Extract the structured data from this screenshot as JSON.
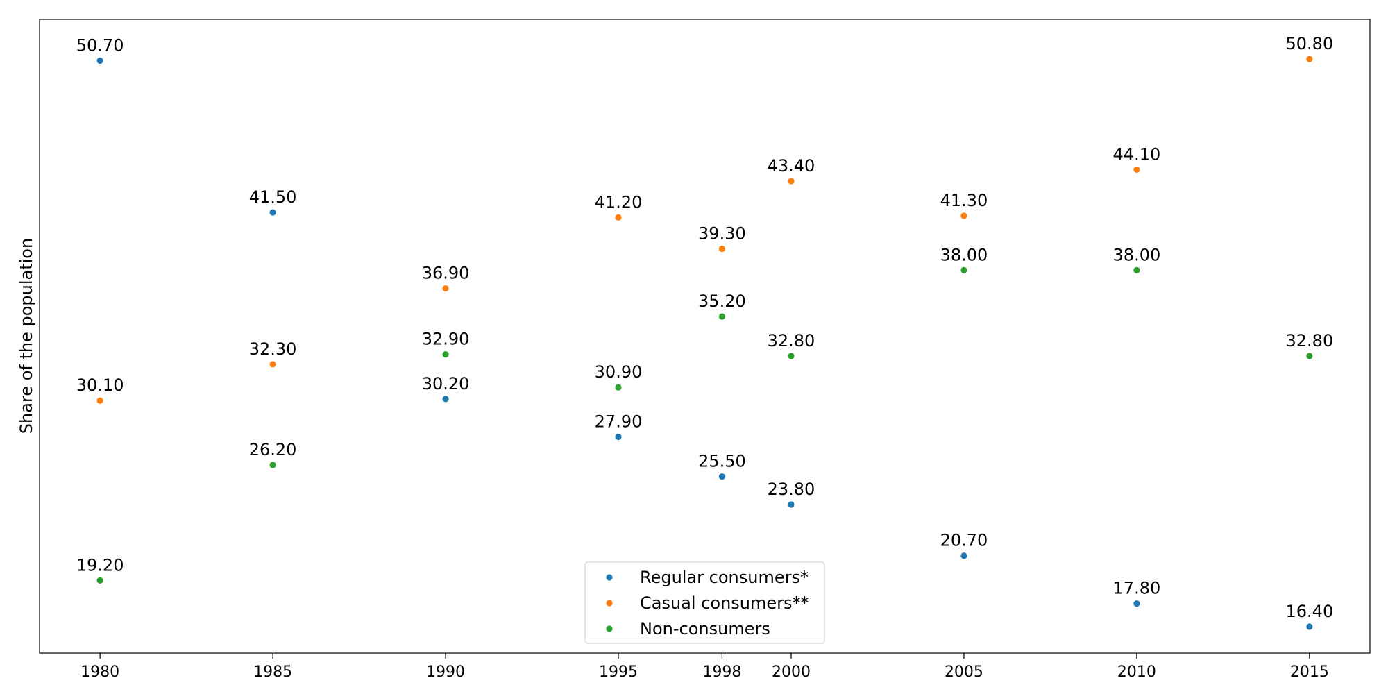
{
  "chart_data": {
    "type": "scatter",
    "title": "",
    "xlabel": "",
    "ylabel": "Share of the population",
    "x": [
      1980,
      1985,
      1990,
      1995,
      1998,
      2000,
      2005,
      2010,
      2015
    ],
    "xticks": [
      "1980",
      "1985",
      "1990",
      "1995",
      "1998",
      "2000",
      "2005",
      "2010",
      "2015"
    ],
    "xlim": [
      1978.25,
      2016.75
    ],
    "ylim": [
      14.8,
      53.2
    ],
    "grid": false,
    "legend_position": "bottom-center",
    "series": [
      {
        "name": "Regular consumers*",
        "color": "#1f77b4",
        "values": [
          50.7,
          41.5,
          30.2,
          27.9,
          25.5,
          23.8,
          20.7,
          17.8,
          16.4
        ],
        "labels": [
          "50.70",
          "41.50",
          "30.20",
          "27.90",
          "25.50",
          "23.80",
          "20.70",
          "17.80",
          "16.40"
        ]
      },
      {
        "name": "Casual consumers**",
        "color": "#ff7f0e",
        "values": [
          30.1,
          32.3,
          36.9,
          41.2,
          39.3,
          43.4,
          41.3,
          44.1,
          50.8
        ],
        "labels": [
          "30.10",
          "32.30",
          "36.90",
          "41.20",
          "39.30",
          "43.40",
          "41.30",
          "44.10",
          "50.80"
        ]
      },
      {
        "name": "Non-consumers",
        "color": "#2ca02c",
        "values": [
          19.2,
          26.2,
          32.9,
          30.9,
          35.2,
          32.8,
          38.0,
          38.0,
          32.8
        ],
        "labels": [
          "19.20",
          "26.20",
          "32.90",
          "30.90",
          "35.20",
          "32.80",
          "38.00",
          "38.00",
          "32.80"
        ]
      }
    ]
  }
}
